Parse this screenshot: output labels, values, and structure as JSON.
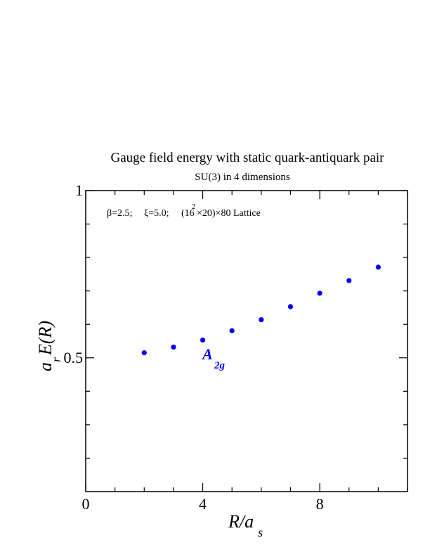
{
  "chart_data": {
    "type": "scatter",
    "title": "Gauge field energy with static quark-antiquark pair",
    "subtitle": "SU(3) in 4 dimensions",
    "annotation": {
      "beta": "β=2.5;",
      "xi": "ξ=5.0;",
      "lattice_open": "(16",
      "lattice_exp": "2",
      "lattice_close": "×20)×80 Lattice"
    },
    "xlabel": {
      "main": "R/a",
      "sub": "s"
    },
    "ylabel": {
      "a": "a",
      "sub": "r",
      "rest": "E(R)"
    },
    "xlim": [
      0,
      11
    ],
    "ylim": [
      0.1,
      1.0
    ],
    "x_ticks": [
      0,
      4,
      8
    ],
    "x_tick_labels": [
      "0",
      "4",
      "8"
    ],
    "x_minor_step": 1,
    "y_ticks": [
      0.5,
      1.0
    ],
    "y_tick_labels": [
      "0.5",
      "1"
    ],
    "y_minor_step": 0.1,
    "series": [
      {
        "name": "A2g",
        "label_main": "A",
        "label_sub": "2g",
        "color": "#0000ff",
        "x": [
          2,
          3,
          4,
          5,
          6,
          7,
          8,
          9,
          10
        ],
        "y": [
          0.515,
          0.532,
          0.553,
          0.581,
          0.614,
          0.653,
          0.693,
          0.731,
          0.771
        ]
      }
    ]
  }
}
